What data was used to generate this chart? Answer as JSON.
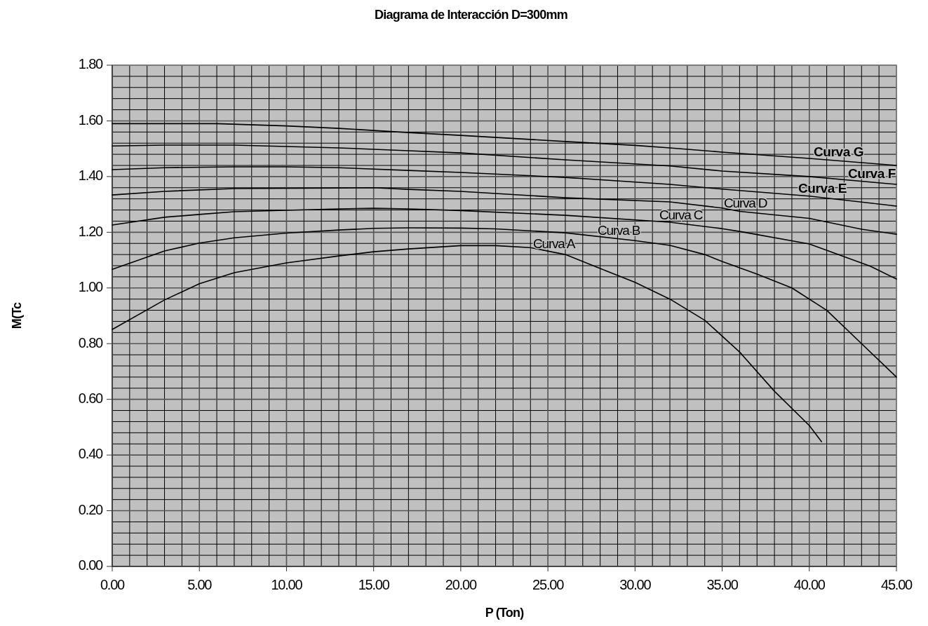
{
  "chart_data": {
    "type": "line",
    "title": "Diagrama de Interacción D=300mm",
    "xlabel": "P (Ton)",
    "ylabel": "M(Tc",
    "xlim": [
      0,
      45
    ],
    "ylim": [
      0,
      1.8
    ],
    "xticks": [
      {
        "value": 0,
        "label": "0.00"
      },
      {
        "value": 5,
        "label": "5.00"
      },
      {
        "value": 10,
        "label": "10.00"
      },
      {
        "value": 15,
        "label": "15.00"
      },
      {
        "value": 20,
        "label": "20.00"
      },
      {
        "value": 25,
        "label": "25.00"
      },
      {
        "value": 30,
        "label": "30.00"
      },
      {
        "value": 35,
        "label": "35.00"
      },
      {
        "value": 40,
        "label": "40.00"
      },
      {
        "value": 45,
        "label": "45.00"
      }
    ],
    "yticks": [
      {
        "value": 0,
        "label": "0.00"
      },
      {
        "value": 0.2,
        "label": "0.20"
      },
      {
        "value": 0.4,
        "label": "0.40"
      },
      {
        "value": 0.6,
        "label": "0.60"
      },
      {
        "value": 0.8,
        "label": "0.80"
      },
      {
        "value": 1,
        "label": "1.00"
      },
      {
        "value": 1.2,
        "label": "1.20"
      },
      {
        "value": 1.4,
        "label": "1.40"
      },
      {
        "value": 1.6,
        "label": "1.60"
      },
      {
        "value": 1.8,
        "label": "1.80"
      }
    ],
    "grid": true,
    "marker": "none",
    "line_style": "solid",
    "series": [
      {
        "name": "Curva A",
        "color": "#000000",
        "x": [
          0,
          3,
          5,
          7,
          10,
          13,
          15,
          17,
          20,
          22,
          24,
          26,
          28,
          30,
          32,
          34,
          36,
          38,
          40,
          40.7
        ],
        "values": [
          0.851,
          0.957,
          1.015,
          1.055,
          1.09,
          1.115,
          1.13,
          1.14,
          1.152,
          1.152,
          1.145,
          1.12,
          1.07,
          1.02,
          0.96,
          0.884,
          0.77,
          0.629,
          0.506,
          0.448
        ]
      },
      {
        "name": "Curva B",
        "color": "#000000",
        "x": [
          0,
          3,
          5,
          7,
          10,
          13,
          15,
          17,
          20,
          22,
          26,
          30,
          32,
          34,
          35,
          37,
          39,
          41,
          43,
          45
        ],
        "values": [
          1.067,
          1.133,
          1.161,
          1.18,
          1.197,
          1.208,
          1.214,
          1.216,
          1.215,
          1.212,
          1.198,
          1.17,
          1.153,
          1.12,
          1.095,
          1.05,
          1.0,
          0.92,
          0.8,
          0.68
        ]
      },
      {
        "name": "Curva C",
        "color": "#000000",
        "x": [
          0,
          3,
          5,
          7,
          13,
          15,
          17,
          20,
          26,
          32,
          35,
          36,
          40,
          43.5,
          45
        ],
        "values": [
          1.226,
          1.254,
          1.264,
          1.274,
          1.284,
          1.286,
          1.284,
          1.278,
          1.261,
          1.236,
          1.213,
          1.203,
          1.158,
          1.078,
          1.032
        ]
      },
      {
        "name": "Curva D",
        "color": "#000000",
        "x": [
          0,
          3,
          7,
          13,
          15,
          17,
          20,
          26,
          32,
          35,
          36,
          40,
          43,
          45
        ],
        "values": [
          1.334,
          1.347,
          1.357,
          1.359,
          1.36,
          1.354,
          1.347,
          1.324,
          1.309,
          1.287,
          1.275,
          1.25,
          1.211,
          1.193
        ]
      },
      {
        "name": "Curva E",
        "color": "#000000",
        "x": [
          0,
          3,
          7,
          10,
          13,
          17,
          20,
          26,
          32,
          35,
          40,
          45
        ],
        "values": [
          1.425,
          1.432,
          1.435,
          1.435,
          1.432,
          1.422,
          1.415,
          1.397,
          1.372,
          1.355,
          1.33,
          1.294
        ]
      },
      {
        "name": "Curva F",
        "color": "#000000",
        "x": [
          0,
          3,
          7,
          10,
          13,
          17,
          20,
          26,
          32,
          35,
          40,
          45
        ],
        "values": [
          1.51,
          1.513,
          1.513,
          1.508,
          1.503,
          1.493,
          1.485,
          1.46,
          1.438,
          1.42,
          1.4,
          1.372
        ]
      },
      {
        "name": "Curva G",
        "color": "#000000",
        "x": [
          0,
          3,
          6,
          10,
          13,
          17,
          20,
          26,
          30,
          32,
          35,
          40,
          45
        ],
        "values": [
          1.59,
          1.59,
          1.59,
          1.582,
          1.573,
          1.558,
          1.548,
          1.526,
          1.512,
          1.503,
          1.488,
          1.465,
          1.44
        ]
      }
    ]
  }
}
